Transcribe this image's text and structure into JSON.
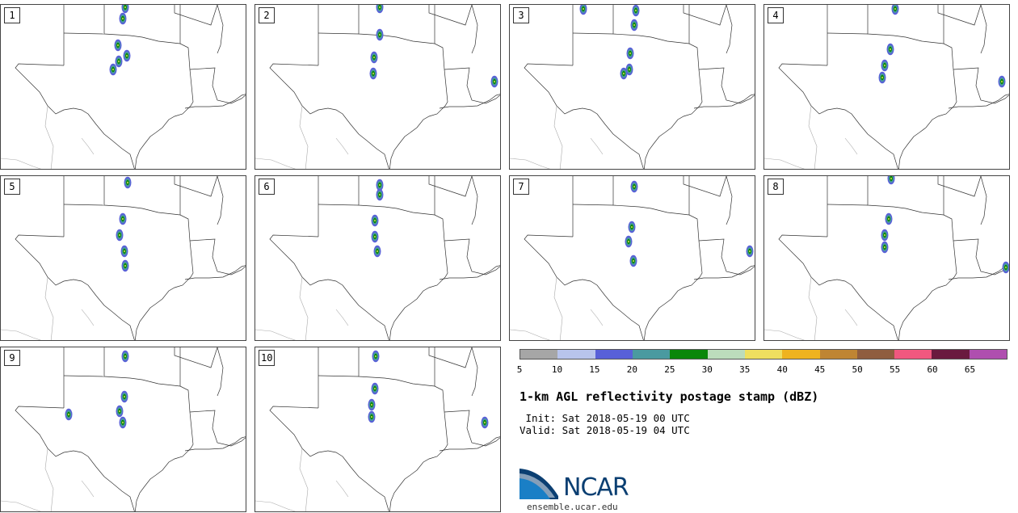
{
  "panels": [
    {
      "number": "1"
    },
    {
      "number": "2"
    },
    {
      "number": "3"
    },
    {
      "number": "4"
    },
    {
      "number": "5"
    },
    {
      "number": "6"
    },
    {
      "number": "7"
    },
    {
      "number": "8"
    },
    {
      "number": "9"
    },
    {
      "number": "10"
    }
  ],
  "legend": {
    "colors": [
      "#a6a6a6",
      "#b8c4ec",
      "#5860d8",
      "#4a9aa0",
      "#0a870a",
      "#bcdcbc",
      "#efdf5f",
      "#efb31f",
      "#bf8533",
      "#8f5d3f",
      "#f0587f",
      "#6a1a3f",
      "#af4faf"
    ],
    "ticks": [
      "5",
      "10",
      "15",
      "20",
      "25",
      "30",
      "35",
      "40",
      "45",
      "50",
      "55",
      "60",
      "65"
    ]
  },
  "title": "1-km AGL reflectivity postage stamp (dBZ)",
  "init": " Init: Sat 2018-05-19 00 UTC",
  "valid": "Valid: Sat 2018-05-19 04 UTC",
  "logo": {
    "text": "NCAR",
    "url_text": "ensemble.ucar.edu",
    "colors": {
      "navy": "#0b3f72",
      "blue": "#1a7fc6"
    }
  }
}
